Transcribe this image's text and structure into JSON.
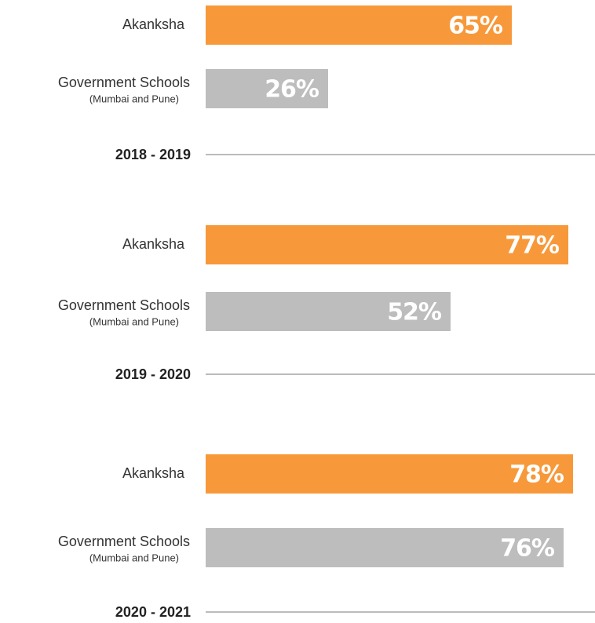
{
  "chart_data": {
    "type": "bar",
    "categories": [
      "2018 - 2019",
      "2019 - 2020",
      "2020 - 2021"
    ],
    "series": [
      {
        "name": "Akanksha",
        "color": "#f7993a",
        "values": [
          65,
          77,
          78
        ],
        "value_labels": [
          "65%",
          "77%",
          "78%"
        ]
      },
      {
        "name": "Government Schools",
        "note": "(Mumbai and Pune)",
        "color": "#bdbdbd",
        "values": [
          26,
          52,
          76
        ],
        "value_labels": [
          "26%",
          "52%",
          "76%"
        ]
      }
    ]
  }
}
